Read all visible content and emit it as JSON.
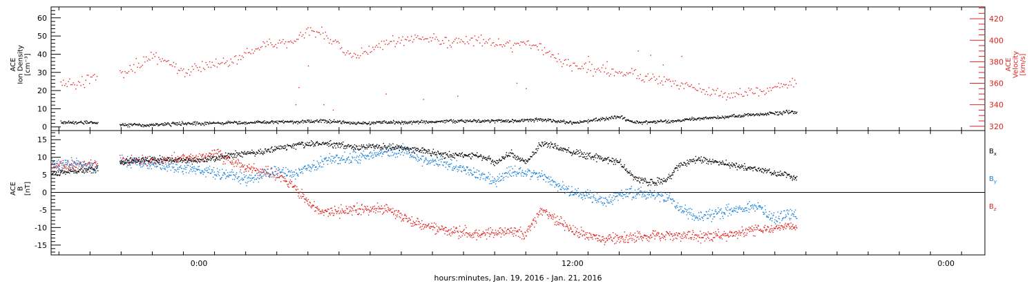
{
  "chart_data": [
    {
      "type": "scatter",
      "panel": "plasma",
      "title": "",
      "xlabel": "hours:minutes, Jan. 19, 2016 - Jan. 21, 2016",
      "x_unit": "hours relative to Jan. 20, 2016 00:00",
      "xlim": [
        -4.75,
        25.25
      ],
      "x_tick_labels": [
        "0:00",
        "12:00",
        "0:00"
      ],
      "x_tick_positions_hours": [
        0,
        12,
        24
      ],
      "left_axis": {
        "label_lines": [
          "ACE",
          "Ion Density",
          "[cm⁻³]"
        ],
        "ylim": [
          -2,
          66
        ],
        "ticks": [
          0,
          10,
          20,
          30,
          40,
          50,
          60
        ]
      },
      "right_axis": {
        "label_lines": [
          "ACE",
          "Velocity",
          "[km/s]"
        ],
        "ylim": [
          316,
          431
        ],
        "ticks": [
          320,
          340,
          360,
          380,
          400,
          420
        ],
        "color": "#e0201b"
      },
      "series": [
        {
          "axis": "left",
          "color": "#000000",
          "segments": [
            [
              -4.45,
              -3.25
            ],
            [
              -2.55,
              19.2
            ]
          ],
          "anchors": [
            [
              -4.45,
              2.5
            ],
            [
              -3.3,
              2.4
            ],
            [
              -2.5,
              1.0
            ],
            [
              -1.5,
              1.0
            ],
            [
              -1.0,
              1.5
            ],
            [
              0,
              2.0
            ],
            [
              1,
              2.2
            ],
            [
              2,
              2.4
            ],
            [
              3,
              2.8
            ],
            [
              4,
              3.3
            ],
            [
              5,
              2.2
            ],
            [
              6,
              2.4
            ],
            [
              7,
              2.6
            ],
            [
              8,
              3.0
            ],
            [
              9,
              3.3
            ],
            [
              10,
              3.3
            ],
            [
              11,
              4.0
            ],
            [
              12,
              2.2
            ],
            [
              12.5,
              3.2
            ],
            [
              13,
              4.5
            ],
            [
              13.5,
              5.5
            ],
            [
              14,
              2.5
            ],
            [
              15,
              2.8
            ],
            [
              16,
              4.5
            ],
            [
              17,
              5.5
            ],
            [
              18,
              7.0
            ],
            [
              19,
              8.0
            ],
            [
              19.2,
              8.0
            ]
          ],
          "noise": 0.8
        },
        {
          "axis": "right",
          "color": "#e0201b",
          "segments": [
            [
              -4.45,
              -3.25
            ],
            [
              -2.55,
              19.2
            ]
          ],
          "anchors": [
            [
              -4.45,
              363
            ],
            [
              -4.0,
              360
            ],
            [
              -3.7,
              362
            ],
            [
              -3.3,
              363
            ],
            [
              -2.5,
              368
            ],
            [
              -2.0,
              377
            ],
            [
              -1.5,
              385
            ],
            [
              -1.0,
              380
            ],
            [
              -0.5,
              370
            ],
            [
              0,
              375
            ],
            [
              0.5,
              378
            ],
            [
              1,
              380
            ],
            [
              2,
              395
            ],
            [
              3,
              400
            ],
            [
              3.5,
              410
            ],
            [
              4,
              405
            ],
            [
              5,
              385
            ],
            [
              6,
              398
            ],
            [
              7,
              402
            ],
            [
              8,
              398
            ],
            [
              9,
              400
            ],
            [
              10,
              395
            ],
            [
              10.5,
              398
            ],
            [
              11,
              392
            ],
            [
              12,
              375
            ],
            [
              13,
              372
            ],
            [
              14,
              368
            ],
            [
              15,
              362
            ],
            [
              16,
              355
            ],
            [
              17,
              348
            ],
            [
              18,
              352
            ],
            [
              19,
              360
            ],
            [
              19.2,
              361
            ]
          ],
          "noise": 4.5,
          "outliers": [
            [
              0.3,
              322
            ],
            [
              3.1,
              340
            ],
            [
              3.2,
              356
            ],
            [
              3.5,
              376
            ],
            [
              4.0,
              340
            ],
            [
              4.3,
              335
            ],
            [
              6.0,
              350
            ],
            [
              7.2,
              345
            ],
            [
              8.3,
              348
            ],
            [
              10.2,
              360
            ],
            [
              10.5,
              355
            ],
            [
              12.5,
              385
            ],
            [
              13.1,
              380
            ],
            [
              14.1,
              390
            ],
            [
              14.5,
              386
            ],
            [
              14.9,
              377
            ],
            [
              15.5,
              385
            ]
          ]
        }
      ]
    },
    {
      "type": "scatter",
      "panel": "magnetic",
      "title": "",
      "xlabel": "hours:minutes, Jan. 19, 2016 - Jan. 21, 2016",
      "x_unit": "hours relative to Jan. 20, 2016 00:00",
      "xlim": [
        -4.75,
        25.25
      ],
      "x_tick_labels": [
        "0:00",
        "12:00",
        "0:00"
      ],
      "x_tick_positions_hours": [
        0,
        12,
        24
      ],
      "left_axis": {
        "label_lines": [
          "ACE",
          "B",
          "[nT]"
        ],
        "ylim": [
          -17.8,
          17.6
        ],
        "ticks": [
          -15,
          -10,
          -5,
          0,
          5,
          10,
          15
        ]
      },
      "zero_line": true,
      "legend_position": "right",
      "legend_entries": [
        {
          "label": "B",
          "sub": "x",
          "color": "#000000"
        },
        {
          "label": "B",
          "sub": "y",
          "color": "#1a80d9"
        },
        {
          "label": "B",
          "sub": "z",
          "color": "#e0201b"
        }
      ],
      "series": [
        {
          "name": "Bx",
          "color": "#000000",
          "segments": [
            [
              -4.75,
              -3.25
            ],
            [
              -2.55,
              19.2
            ]
          ],
          "anchors": [
            [
              -4.75,
              5.5
            ],
            [
              -4.0,
              6.0
            ],
            [
              -3.3,
              6.5
            ],
            [
              -2.5,
              8.5
            ],
            [
              -1.5,
              9.5
            ],
            [
              0,
              9.0
            ],
            [
              1,
              10.5
            ],
            [
              2,
              11.5
            ],
            [
              2.5,
              12.5
            ],
            [
              3,
              13.5
            ],
            [
              4,
              14.0
            ],
            [
              5,
              13.0
            ],
            [
              6,
              13.0
            ],
            [
              7,
              12.0
            ],
            [
              8,
              10.5
            ],
            [
              9,
              10.5
            ],
            [
              9.5,
              8.5
            ],
            [
              10,
              11.0
            ],
            [
              10.5,
              8.5
            ],
            [
              11,
              14.0
            ],
            [
              12,
              11.5
            ],
            [
              13,
              9.5
            ],
            [
              13.5,
              8.5
            ],
            [
              14,
              4.0
            ],
            [
              14.5,
              2.5
            ],
            [
              15,
              3.5
            ],
            [
              15.5,
              8.0
            ],
            [
              16,
              9.5
            ],
            [
              17,
              8.0
            ],
            [
              18,
              6.5
            ],
            [
              19,
              4.5
            ],
            [
              19.2,
              4.0
            ]
          ],
          "noise": 0.8
        },
        {
          "name": "By",
          "color": "#1a80d9",
          "segments": [
            [
              -4.75,
              -3.25
            ],
            [
              -2.55,
              19.2
            ]
          ],
          "anchors": [
            [
              -4.75,
              8.0
            ],
            [
              -4.0,
              8.0
            ],
            [
              -3.3,
              7.0
            ],
            [
              -2.5,
              9.0
            ],
            [
              -1.5,
              8.0
            ],
            [
              -0.5,
              7.0
            ],
            [
              0,
              6.0
            ],
            [
              1,
              5.0
            ],
            [
              1.5,
              3.5
            ],
            [
              2.5,
              6.0
            ],
            [
              3,
              5.0
            ],
            [
              4,
              9.0
            ],
            [
              5,
              10.0
            ],
            [
              6,
              11.0
            ],
            [
              6.5,
              12.0
            ],
            [
              7,
              10.0
            ],
            [
              8,
              8.0
            ],
            [
              9,
              5.0
            ],
            [
              9.5,
              3.0
            ],
            [
              10,
              6.0
            ],
            [
              11,
              5.0
            ],
            [
              12,
              0.0
            ],
            [
              12.5,
              -1.0
            ],
            [
              13,
              -2.5
            ],
            [
              13.5,
              -1.0
            ],
            [
              14,
              0.0
            ],
            [
              15,
              -1.0
            ],
            [
              15.5,
              -5.0
            ],
            [
              16,
              -7.0
            ],
            [
              17,
              -5.0
            ],
            [
              18,
              -4.0
            ],
            [
              18.5,
              -7.5
            ],
            [
              19,
              -6.0
            ],
            [
              19.2,
              -6.5
            ]
          ],
          "noise": 1.4
        },
        {
          "name": "Bz",
          "color": "#e0201b",
          "segments": [
            [
              -4.75,
              -3.25
            ],
            [
              -2.55,
              19.2
            ]
          ],
          "anchors": [
            [
              -4.75,
              7.0
            ],
            [
              -4.0,
              7.5
            ],
            [
              -3.3,
              8.0
            ],
            [
              -2.5,
              9.0
            ],
            [
              -1.5,
              9.0
            ],
            [
              -0.5,
              9.5
            ],
            [
              0,
              10.0
            ],
            [
              0.5,
              11.0
            ],
            [
              1,
              9.0
            ],
            [
              1.5,
              7.0
            ],
            [
              2.5,
              5.0
            ],
            [
              3,
              2.0
            ],
            [
              3.5,
              -3.0
            ],
            [
              4,
              -6.0
            ],
            [
              5,
              -5.0
            ],
            [
              6,
              -4.5
            ],
            [
              7,
              -9.0
            ],
            [
              8,
              -11.0
            ],
            [
              9,
              -12.0
            ],
            [
              10,
              -11.0
            ],
            [
              10.5,
              -12.0
            ],
            [
              11,
              -5.0
            ],
            [
              12,
              -11.0
            ],
            [
              13,
              -13.5
            ],
            [
              14,
              -13.0
            ],
            [
              15,
              -12.0
            ],
            [
              16,
              -12.5
            ],
            [
              17,
              -12.0
            ],
            [
              18,
              -10.5
            ],
            [
              19,
              -9.5
            ],
            [
              19.2,
              -10.0
            ]
          ],
          "noise": 1.3
        }
      ]
    }
  ]
}
